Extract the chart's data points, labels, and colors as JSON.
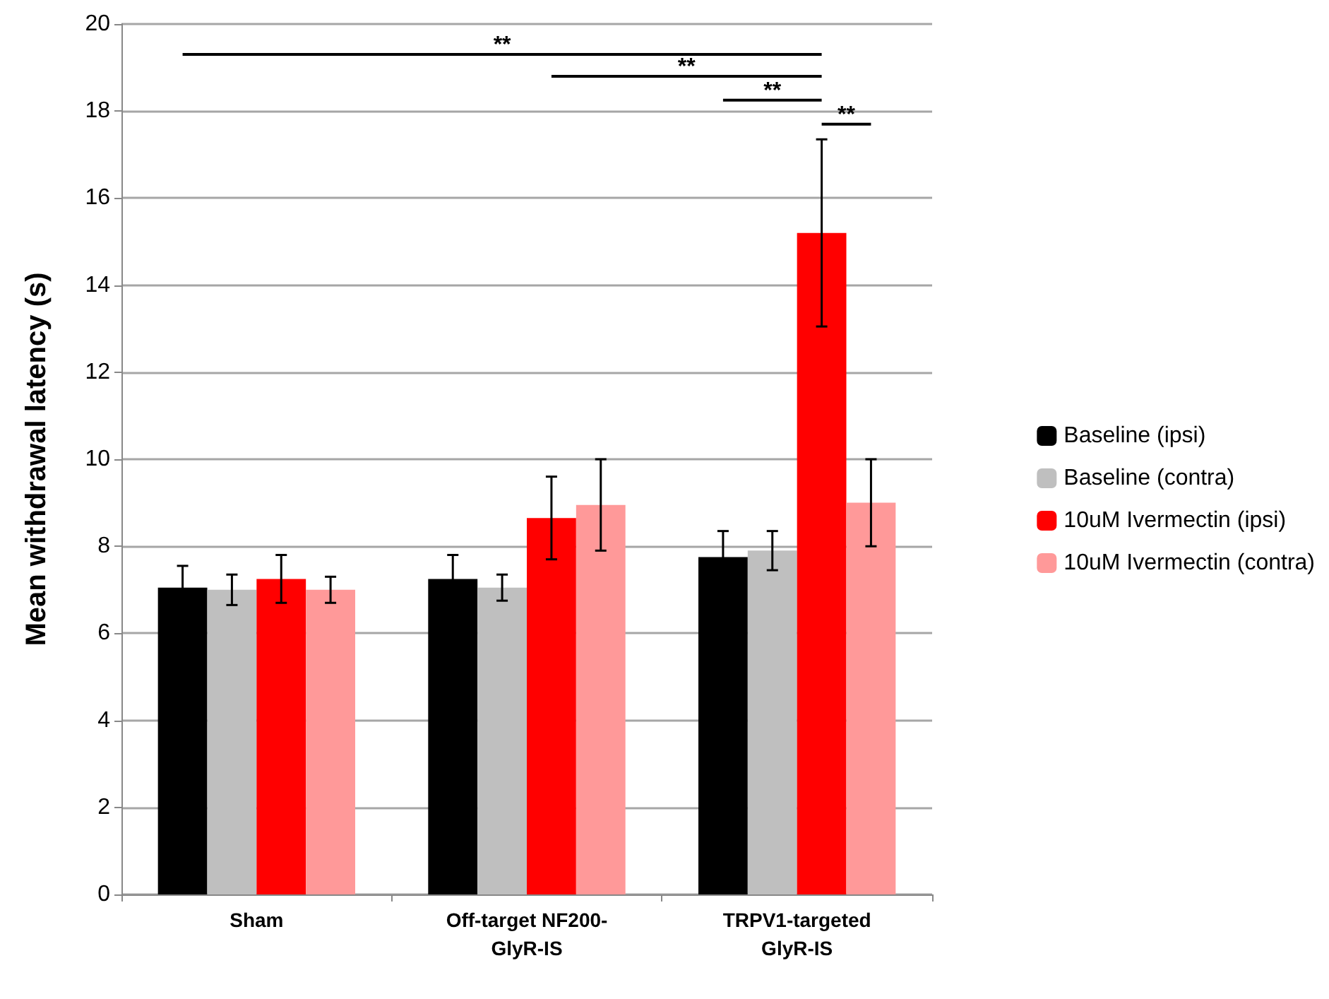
{
  "chart_data": {
    "type": "bar",
    "ylabel": "Mean withdrawal latency (s)",
    "categories": [
      "Sham",
      "Off-target NF200-\nGlyR-IS",
      "TRPV1-targeted\nGlyR-IS"
    ],
    "series": [
      {
        "name": "Baseline (ipsi)",
        "color": "#000000",
        "values": [
          7.05,
          7.25,
          7.75
        ],
        "errors": [
          0.5,
          0.55,
          0.6
        ]
      },
      {
        "name": "Baseline (contra)",
        "color": "#bfbfbf",
        "values": [
          7.0,
          7.05,
          7.9
        ],
        "errors": [
          0.35,
          0.3,
          0.45
        ]
      },
      {
        "name": "10uM Ivermectin (ipsi)",
        "color": "#ff0000",
        "values": [
          7.25,
          8.65,
          15.2
        ],
        "errors": [
          0.55,
          0.95,
          2.15
        ]
      },
      {
        "name": "10uM Ivermectin (contra)",
        "color": "#ff9999",
        "values": [
          7.0,
          8.95,
          9.0
        ],
        "errors": [
          0.3,
          1.05,
          1.0
        ]
      }
    ],
    "ylim": [
      0,
      20
    ],
    "yticks": [
      0,
      2,
      4,
      6,
      8,
      10,
      12,
      14,
      16,
      18,
      20
    ],
    "grid": "y",
    "legend": "right",
    "annotations": [
      "**",
      "**",
      "**",
      "**"
    ]
  }
}
